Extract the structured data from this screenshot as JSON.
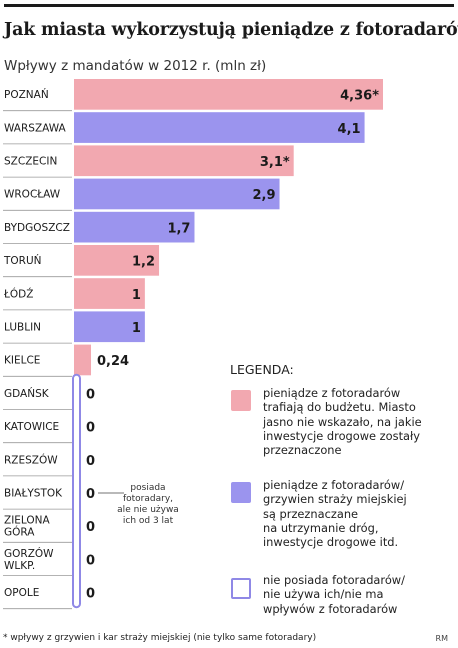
{
  "title": "Jak miasta wykorzystują pieniądze z fotoradarów",
  "subtitle": "Wpływy z mandatów w 2012 r. (mln zł)",
  "colors": {
    "pink": "#f2a8b0",
    "purple": "#9b94ee",
    "outline": "#8f88e6"
  },
  "chart_data": {
    "type": "bar",
    "orientation": "horizontal",
    "title": "Jak miasta wykorzystują pieniądze z fotoradarów",
    "subtitle": "Wpływy z mandatów w 2012 r. (mln zł)",
    "xlim": [
      0,
      4.36
    ],
    "grid": false,
    "legend_position": "bottom-right",
    "bars": [
      {
        "city": "POZNAŃ",
        "value": 4.36,
        "label": "4,36*",
        "category": "pink"
      },
      {
        "city": "WARSZAWA",
        "value": 4.1,
        "label": "4,1",
        "category": "purple"
      },
      {
        "city": "SZCZECIN",
        "value": 3.1,
        "label": "3,1*",
        "category": "pink"
      },
      {
        "city": "WROCŁAW",
        "value": 2.9,
        "label": "2,9",
        "category": "purple"
      },
      {
        "city": "BYDGOSZCZ",
        "value": 1.7,
        "label": "1,7",
        "category": "purple"
      },
      {
        "city": "TORUŃ",
        "value": 1.2,
        "label": "1,2",
        "category": "pink"
      },
      {
        "city": "ŁÓDŹ",
        "value": 1,
        "label": "1",
        "category": "pink"
      },
      {
        "city": "LUBLIN",
        "value": 1,
        "label": "1",
        "category": "purple"
      },
      {
        "city": "KIELCE",
        "value": 0.24,
        "label": "0,24",
        "category": "pink"
      },
      {
        "city": "GDAŃSK",
        "value": 0,
        "label": "0",
        "category": "none"
      },
      {
        "city": "KATOWICE",
        "value": 0,
        "label": "0",
        "category": "none"
      },
      {
        "city": "RZESZÓW",
        "value": 0,
        "label": "0",
        "category": "none"
      },
      {
        "city": "BIAŁYSTOK",
        "value": 0,
        "label": "0",
        "category": "none"
      },
      {
        "city": "ZIELONA\nGÓRA",
        "value": 0,
        "label": "0",
        "category": "none"
      },
      {
        "city": "GORZÓW\nWLKP.",
        "value": 0,
        "label": "0",
        "category": "none"
      },
      {
        "city": "OPOLE",
        "value": 0,
        "label": "0",
        "category": "none"
      }
    ],
    "annotations": [
      {
        "city": "BIAŁYSTOK",
        "text": "posiada\nfotoradary,\nale nie używa\nich od 3 lat"
      }
    ]
  },
  "legend": {
    "title": "LEGENDA:",
    "items": [
      {
        "category": "pink",
        "text": "pieniądze z fotoradarów\ntrafiają do budżetu. Miasto\njasno nie wskazało, na jakie\ninwestycje drogowe zostały\nprzeznaczone"
      },
      {
        "category": "purple",
        "text": "pieniądze z fotoradarów/\ngrzywien straży miejskiej\nsą przeznaczane\nna utrzymanie dróg,\ninwestycje drogowe itd."
      },
      {
        "category": "none",
        "text": "nie posiada fotoradarów/\nnie używa ich/nie ma\nwpływów z fotoradarów"
      }
    ]
  },
  "footnote": "* wpływy z grzywien i kar straży miejskiej (nie tylko same fotoradary)",
  "credit": "RM"
}
